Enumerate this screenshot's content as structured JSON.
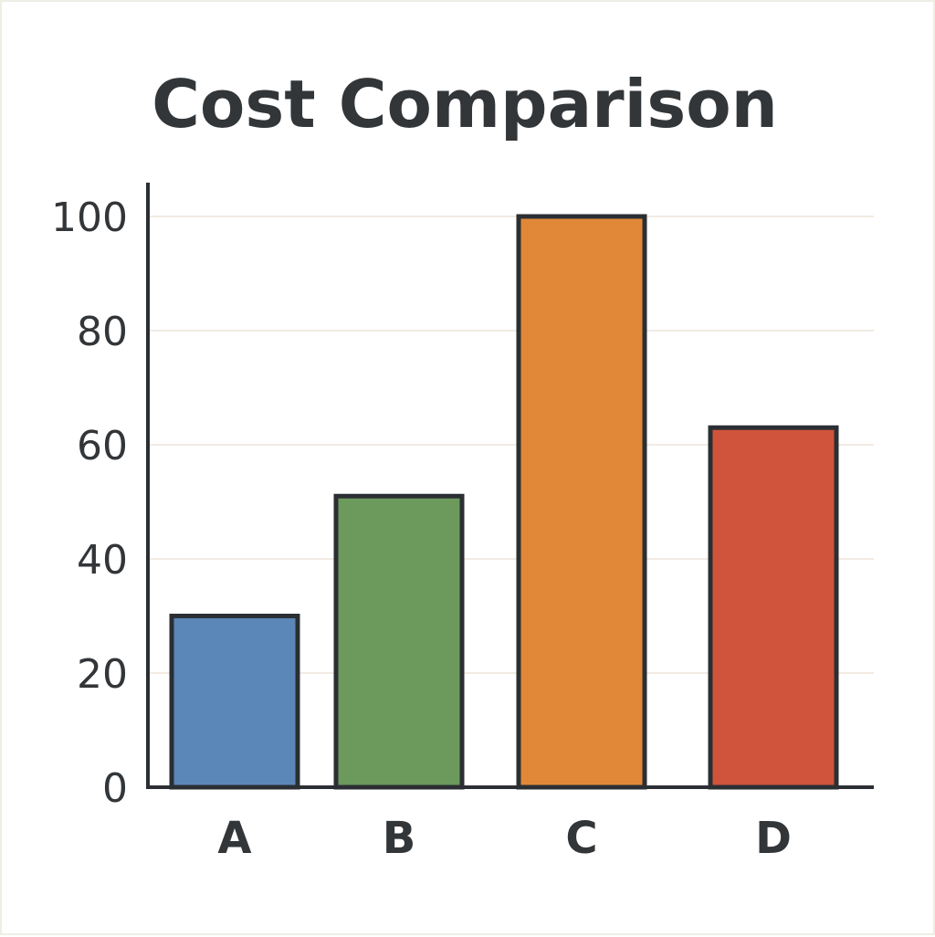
{
  "chart_data": {
    "type": "bar",
    "title": "Cost Comparison",
    "xlabel": "",
    "ylabel": "",
    "categories": [
      "A",
      "B",
      "C",
      "D"
    ],
    "values": [
      30,
      51,
      100,
      63
    ],
    "colors": [
      "#5b86b8",
      "#6b9a5c",
      "#e08838",
      "#cf543b"
    ],
    "bar_outline_color": "#2b2f33",
    "ylim": [
      0,
      100
    ],
    "yticks": [
      0,
      20,
      40,
      60,
      80,
      100
    ],
    "ytick_labels": [
      "0",
      "20",
      "40",
      "60",
      "80",
      "100"
    ],
    "grid": "horizontal",
    "grid_color": "#ede4da",
    "legend": "none"
  }
}
